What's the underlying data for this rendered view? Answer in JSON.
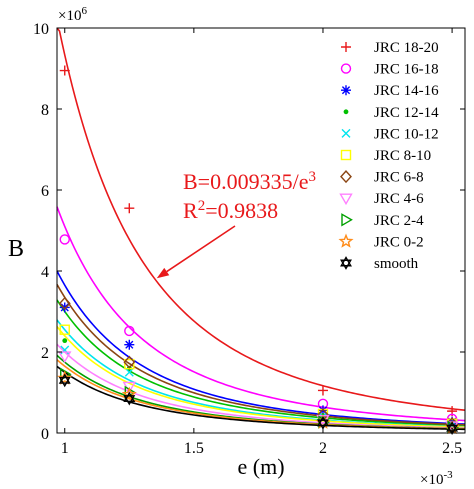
{
  "colors": {
    "axis": "#000000",
    "annotation": "#e8191b"
  },
  "chart_data": {
    "type": "scatter",
    "xlabel": "e (m)",
    "ylabel": "B",
    "x_exponent_label": "×10",
    "x_exponent": "-3",
    "y_exponent_label": "×10",
    "y_exponent": "6",
    "xlim": [
      0.00097,
      0.00255
    ],
    "ylim": [
      0,
      10000000
    ],
    "xticks": [
      0.001,
      0.0015,
      0.002,
      0.0025
    ],
    "xtick_labels": [
      "1",
      "1.5",
      "2",
      "2.5"
    ],
    "yticks": [
      0,
      2000000,
      4000000,
      6000000,
      8000000,
      10000000
    ],
    "ytick_labels": [
      "0",
      "2",
      "4",
      "6",
      "8",
      "10"
    ],
    "grid": false,
    "legend_position": "top-right",
    "x": [
      0.001,
      0.00125,
      0.002,
      0.0025
    ],
    "fit_model": "B = k / e^3",
    "series": [
      {
        "name": "JRC 18-20",
        "marker": "plus",
        "color": "#e8191b",
        "values": [
          8950000,
          5550000,
          1050000,
          540000
        ],
        "fit_k": 0.009335
      },
      {
        "name": "JRC 16-18",
        "marker": "circle",
        "color": "#ff00ff",
        "values": [
          4780000,
          2520000,
          720000,
          350000
        ],
        "fit_k": 0.0051
      },
      {
        "name": "JRC 14-16",
        "marker": "star",
        "color": "#0000ff",
        "values": [
          3100000,
          2180000,
          560000,
          280000
        ],
        "fit_k": 0.00365
      },
      {
        "name": "JRC 12-14",
        "marker": "dot",
        "color": "#00c000",
        "values": [
          2280000,
          1600000,
          430000,
          230000
        ],
        "fit_k": 0.003
      },
      {
        "name": "JRC 10-12",
        "marker": "cross",
        "color": "#00e5ee",
        "values": [
          2050000,
          1500000,
          400000,
          200000
        ],
        "fit_k": 0.00255
      },
      {
        "name": "JRC 8-10",
        "marker": "square",
        "color": "#ffff00",
        "values": [
          2550000,
          1700000,
          470000,
          230000
        ],
        "fit_k": 0.0024
      },
      {
        "name": "JRC 6-8",
        "marker": "diamond",
        "color": "#8b4513",
        "values": [
          3200000,
          1750000,
          450000,
          230000
        ],
        "fit_k": 0.00335
      },
      {
        "name": "JRC 4-6",
        "marker": "triangle-down",
        "color": "#ff80ff",
        "values": [
          1900000,
          1150000,
          330000,
          170000
        ],
        "fit_k": 0.002
      },
      {
        "name": "JRC 2-4",
        "marker": "triangle-right",
        "color": "#00a000",
        "values": [
          1450000,
          1000000,
          270000,
          140000
        ],
        "fit_k": 0.00175
      },
      {
        "name": "JRC 0-2",
        "marker": "pentagram",
        "color": "#ff8c1a",
        "values": [
          1350000,
          950000,
          260000,
          130000
        ],
        "fit_k": 0.00165
      },
      {
        "name": "smooth",
        "marker": "hexagram",
        "color": "#000000",
        "values": [
          1300000,
          850000,
          250000,
          120000
        ],
        "fit_k": 0.0015
      }
    ],
    "annotations": [
      {
        "text_main": "B=0.009335/e",
        "text_sup": "3",
        "target_series": "JRC 18-20",
        "target_x": 0.00135
      },
      {
        "text_main": "R",
        "text_sup": "2",
        "text_rest": "=0.9838"
      }
    ]
  }
}
